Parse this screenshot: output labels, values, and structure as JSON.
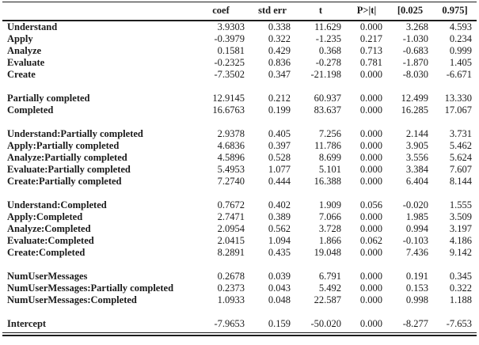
{
  "page": {
    "background": "#ffffff",
    "text_color": "#1a1a1a",
    "rule_color": "#1c1c1c"
  },
  "table": {
    "columns": [
      "coef",
      "std err",
      "t",
      "P>|t|",
      "[0.025",
      "0.975]"
    ],
    "groups": [
      {
        "rows": [
          {
            "label": "Understand",
            "values": [
              "3.9303",
              "0.338",
              "11.629",
              "0.000",
              "3.268",
              "4.593"
            ]
          },
          {
            "label": "Apply",
            "values": [
              "-0.3979",
              "0.322",
              "-1.235",
              "0.217",
              "-1.030",
              "0.234"
            ]
          },
          {
            "label": "Analyze",
            "values": [
              "0.1581",
              "0.429",
              "0.368",
              "0.713",
              "-0.683",
              "0.999"
            ]
          },
          {
            "label": "Evaluate",
            "values": [
              "-0.2325",
              "0.836",
              "-0.278",
              "0.781",
              "-1.870",
              "1.405"
            ]
          },
          {
            "label": "Create",
            "values": [
              "-7.3502",
              "0.347",
              "-21.198",
              "0.000",
              "-8.030",
              "-6.671"
            ]
          }
        ]
      },
      {
        "rows": [
          {
            "label": "Partially completed",
            "values": [
              "12.9145",
              "0.212",
              "60.937",
              "0.000",
              "12.499",
              "13.330"
            ]
          },
          {
            "label": "Completed",
            "values": [
              "16.6763",
              "0.199",
              "83.637",
              "0.000",
              "16.285",
              "17.067"
            ]
          }
        ]
      },
      {
        "rows": [
          {
            "label": "Understand:Partially completed",
            "values": [
              "2.9378",
              "0.405",
              "7.256",
              "0.000",
              "2.144",
              "3.731"
            ]
          },
          {
            "label": "Apply:Partially completed",
            "values": [
              "4.6836",
              "0.397",
              "11.786",
              "0.000",
              "3.905",
              "5.462"
            ]
          },
          {
            "label": "Analyze:Partially completed",
            "values": [
              "4.5896",
              "0.528",
              "8.699",
              "0.000",
              "3.556",
              "5.624"
            ]
          },
          {
            "label": "Evaluate:Partially completed",
            "values": [
              "5.4953",
              "1.077",
              "5.101",
              "0.000",
              "3.384",
              "7.607"
            ]
          },
          {
            "label": "Create:Partially completed",
            "values": [
              "7.2740",
              "0.444",
              "16.388",
              "0.000",
              "6.404",
              "8.144"
            ]
          }
        ]
      },
      {
        "rows": [
          {
            "label": "Understand:Completed",
            "values": [
              "0.7672",
              "0.402",
              "1.909",
              "0.056",
              "-0.020",
              "1.555"
            ]
          },
          {
            "label": "Apply:Completed",
            "values": [
              "2.7471",
              "0.389",
              "7.066",
              "0.000",
              "1.985",
              "3.509"
            ]
          },
          {
            "label": "Analyze:Completed",
            "values": [
              "2.0954",
              "0.562",
              "3.728",
              "0.000",
              "0.994",
              "3.197"
            ]
          },
          {
            "label": "Evaluate:Completed",
            "values": [
              "2.0415",
              "1.094",
              "1.866",
              "0.062",
              "-0.103",
              "4.186"
            ]
          },
          {
            "label": "Create:Completed",
            "values": [
              "8.2891",
              "0.435",
              "19.048",
              "0.000",
              "7.436",
              "9.142"
            ]
          }
        ]
      },
      {
        "rows": [
          {
            "label": "NumUserMessages",
            "values": [
              "0.2678",
              "0.039",
              "6.791",
              "0.000",
              "0.191",
              "0.345"
            ]
          },
          {
            "label": "NumUserMessages:Partially completed",
            "values": [
              "0.2373",
              "0.043",
              "5.492",
              "0.000",
              "0.153",
              "0.322"
            ]
          },
          {
            "label": "NumUserMessages:Completed",
            "values": [
              "1.0933",
              "0.048",
              "22.587",
              "0.000",
              "0.998",
              "1.188"
            ]
          }
        ]
      },
      {
        "rows": [
          {
            "label": "Intercept",
            "values": [
              "-7.9653",
              "0.159",
              "-50.020",
              "0.000",
              "-8.277",
              "-7.653"
            ]
          }
        ]
      }
    ]
  }
}
